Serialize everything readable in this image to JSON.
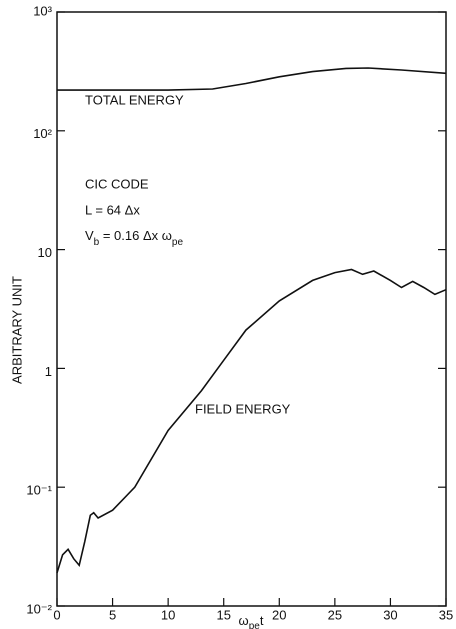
{
  "chart_data": {
    "type": "line",
    "xlabel": [
      "ω",
      "pe",
      "t"
    ],
    "ylabel": "ARBITRARY UNIT",
    "annotations": [
      "CIC CODE",
      "L = 64 Δx"
    ],
    "vb_annotation": [
      "V",
      "b",
      " = 0.16 Δx ω",
      "pe"
    ],
    "log_y": true,
    "xlim": [
      0,
      35
    ],
    "ylim": [
      0.01,
      1000
    ],
    "xticks": [
      0,
      5,
      10,
      15,
      20,
      25,
      30,
      35
    ],
    "yticks": [
      {
        "value": 1000,
        "label": "10³"
      },
      {
        "value": 100,
        "label": "10²"
      },
      10,
      1,
      {
        "value": 0.1,
        "label": "10⁻¹"
      },
      {
        "value": 0.01,
        "label": "10⁻²"
      }
    ],
    "series": [
      {
        "name": "TOTAL ENERGY",
        "color": "#111111",
        "x": [
          0,
          5,
          10,
          14,
          17,
          20,
          23,
          26,
          28,
          31,
          35
        ],
        "values": [
          220,
          220,
          220,
          225,
          250,
          285,
          315,
          335,
          338,
          325,
          305
        ]
      },
      {
        "name": "FIELD ENERGY",
        "color": "#111111",
        "x": [
          0,
          0.5,
          1,
          1.5,
          2,
          2.5,
          3,
          3.3,
          3.7,
          5,
          7,
          10,
          13,
          15,
          17,
          20,
          23,
          25,
          26.5,
          27.5,
          28.5,
          30,
          31,
          32,
          33,
          34,
          35
        ],
        "values": [
          0.019,
          0.027,
          0.03,
          0.025,
          0.022,
          0.035,
          0.058,
          0.061,
          0.055,
          0.064,
          0.1,
          0.3,
          0.65,
          1.17,
          2.1,
          3.7,
          5.5,
          6.4,
          6.8,
          6.2,
          6.6,
          5.5,
          4.8,
          5.4,
          4.8,
          4.2,
          4.6
        ]
      }
    ]
  }
}
